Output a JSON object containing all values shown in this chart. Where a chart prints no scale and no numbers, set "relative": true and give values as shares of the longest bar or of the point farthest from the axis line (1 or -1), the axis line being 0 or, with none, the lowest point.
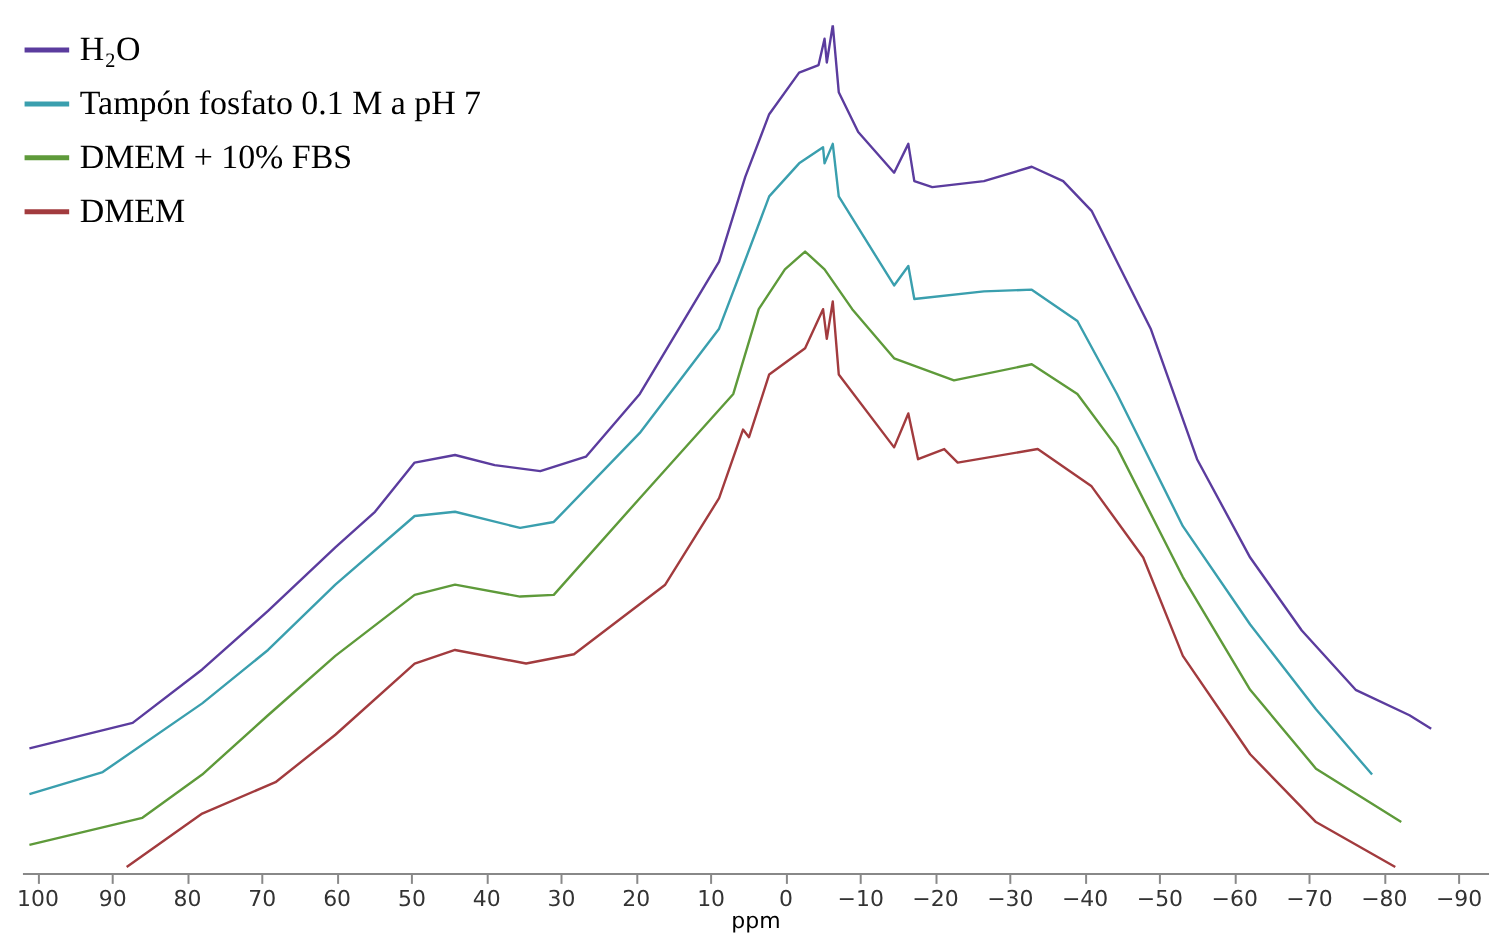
{
  "chart_data": {
    "type": "line",
    "relative": true,
    "xlabel": "ppm",
    "xlim": [
      102,
      -94
    ],
    "xticks": [
      100,
      90,
      80,
      70,
      60,
      50,
      40,
      30,
      20,
      10,
      0,
      -10,
      -20,
      -30,
      -40,
      -50,
      -60,
      -70,
      -80,
      -90
    ],
    "legend": "top left",
    "grid": false,
    "marker": "none",
    "line_style": "solid",
    "series": [
      {
        "name": "H₂O",
        "color": "#5b3c9e",
        "x": [
          101,
          87.2,
          77.9,
          69.1,
          60.1,
          54.8,
          49.5,
          44.1,
          38.8,
          32.7,
          26.6,
          19.4,
          8.8,
          5.3,
          2.1,
          -1.9,
          -4.5,
          -5.3,
          -5.6,
          -6.4,
          -7.2,
          -9.8,
          -14.6,
          -16.5,
          -17.3,
          -19.7,
          -26.6,
          -33.0,
          -37.2,
          -41.0,
          -44.4,
          -48.9,
          -55.1,
          -62.2,
          -69.1,
          -76.3,
          -83.5,
          -86.4
        ],
        "values": [
          0.147,
          0.177,
          0.24,
          0.309,
          0.384,
          0.426,
          0.484,
          0.493,
          0.481,
          0.474,
          0.491,
          0.565,
          0.721,
          0.821,
          0.895,
          0.944,
          0.953,
          0.984,
          0.956,
          1.0,
          0.921,
          0.874,
          0.826,
          0.86,
          0.816,
          0.809,
          0.816,
          0.833,
          0.816,
          0.781,
          0.721,
          0.642,
          0.488,
          0.372,
          0.286,
          0.216,
          0.186,
          0.17
        ]
      },
      {
        "name": "Tampón fosfato 0.1 M a pH 7",
        "color": "#3a9fae",
        "x": [
          101,
          91.2,
          77.9,
          69.1,
          60.1,
          49.5,
          44.1,
          35.4,
          30.9,
          19.4,
          8.8,
          5.3,
          2.1,
          -1.9,
          -5.1,
          -5.3,
          -6.4,
          -7.2,
          -14.6,
          -16.5,
          -17.3,
          -26.6,
          -33.0,
          -39.1,
          -44.4,
          -53.2,
          -62.2,
          -71.0,
          -78.5
        ],
        "values": [
          0.093,
          0.119,
          0.2,
          0.263,
          0.34,
          0.421,
          0.426,
          0.407,
          0.414,
          0.519,
          0.642,
          0.723,
          0.798,
          0.837,
          0.856,
          0.837,
          0.86,
          0.798,
          0.693,
          0.716,
          0.677,
          0.686,
          0.688,
          0.651,
          0.565,
          0.409,
          0.293,
          0.193,
          0.116
        ]
      },
      {
        "name": "DMEM + 10% FBS",
        "color": "#5e9a3a",
        "x": [
          101,
          85.9,
          77.9,
          69.1,
          60.1,
          49.5,
          44.1,
          35.4,
          30.9,
          19.4,
          6.9,
          3.5,
          0,
          -2.7,
          -5.3,
          -9.0,
          -14.6,
          -22.6,
          -33.0,
          -39.1,
          -44.4,
          -53.2,
          -62.2,
          -71.0,
          -82.4
        ],
        "values": [
          0.033,
          0.065,
          0.116,
          0.186,
          0.256,
          0.328,
          0.34,
          0.326,
          0.328,
          0.442,
          0.565,
          0.665,
          0.712,
          0.733,
          0.712,
          0.665,
          0.607,
          0.581,
          0.6,
          0.565,
          0.502,
          0.349,
          0.216,
          0.123,
          0.06
        ]
      },
      {
        "name": "DMEM",
        "color": "#a23b3e",
        "x": [
          88.0,
          77.9,
          68.1,
          60.1,
          49.5,
          44.1,
          34.6,
          28.2,
          16.0,
          8.8,
          5.6,
          4.8,
          2.1,
          -2.7,
          -5.1,
          -5.6,
          -6.4,
          -7.2,
          -14.6,
          -16.5,
          -17.8,
          -21.3,
          -23.1,
          -33.8,
          -41.0,
          -47.9,
          -53.2,
          -62.2,
          -71.0,
          -81.6
        ],
        "values": [
          0.007,
          0.07,
          0.107,
          0.163,
          0.247,
          0.263,
          0.247,
          0.258,
          0.34,
          0.442,
          0.523,
          0.514,
          0.588,
          0.619,
          0.665,
          0.63,
          0.674,
          0.588,
          0.502,
          0.542,
          0.488,
          0.5,
          0.484,
          0.5,
          0.456,
          0.372,
          0.256,
          0.14,
          0.06,
          0.007
        ]
      }
    ]
  }
}
